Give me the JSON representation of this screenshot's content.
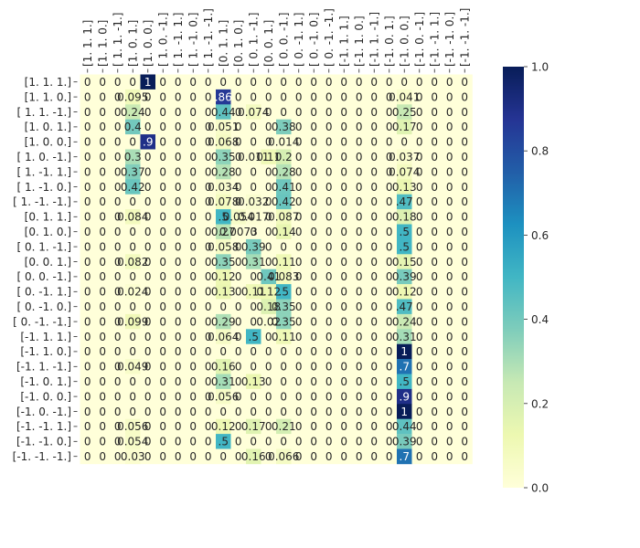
{
  "chart_data": {
    "type": "heatmap",
    "title": "",
    "xlabel": "",
    "ylabel": "",
    "labels": [
      "[1. 1. 1.]",
      "[1. 1. 0.]",
      "[ 1.  1. -1.]",
      "[1. 0. 1.]",
      "[1. 0. 0.]",
      "[ 1.  0. -1.]",
      "[ 1. -1.  1.]",
      "[ 1. -1.  0.]",
      "[ 1. -1. -1.]",
      "[0. 1. 1.]",
      "[0. 1. 0.]",
      "[ 0.  1. -1.]",
      "[0. 0. 1.]",
      "[ 0.  0. -1.]",
      "[ 0. -1.  1.]",
      "[ 0. -1.  0.]",
      "[ 0. -1. -1.]",
      "[-1.  1.  1.]",
      "[-1.  1.  0.]",
      "[-1.  1. -1.]",
      "[-1.  0.  1.]",
      "[-1.  0.  0.]",
      "[-1.  0. -1.]",
      "[-1. -1.  1.]",
      "[-1. -1.  0.]",
      "[-1. -1. -1.]"
    ],
    "cells": [
      [
        "0",
        "0",
        "0",
        "0",
        "1",
        "0",
        "0",
        "0",
        "0",
        "0",
        "0",
        "0",
        "0",
        "0",
        "0",
        "0",
        "0",
        "0",
        "0",
        "0",
        "0",
        "0",
        "0",
        "0",
        "0",
        "0"
      ],
      [
        "0",
        "0",
        "0",
        "0.095",
        "0",
        "0",
        "0",
        "0",
        "0",
        ".86",
        "0",
        "0",
        "0",
        "0",
        "0",
        "0",
        "0",
        "0",
        "0",
        "0",
        "0",
        "0.041",
        "0",
        "0",
        "0",
        "0"
      ],
      [
        "0",
        "0",
        "0",
        "0.24",
        "0",
        "0",
        "0",
        "0",
        "0",
        "0.44",
        "0",
        "0.074",
        "0",
        "0",
        "0",
        "0",
        "0",
        "0",
        "0",
        "0",
        "0",
        "0.25",
        "0",
        "0",
        "0",
        "0"
      ],
      [
        "0",
        "0",
        "0",
        "0.4",
        "0",
        "0",
        "0",
        "0",
        "0",
        "0.051",
        "0",
        "0",
        "0",
        "0.38",
        "0",
        "0",
        "0",
        "0",
        "0",
        "0",
        "0",
        "0.17",
        "0",
        "0",
        "0",
        "0"
      ],
      [
        "0",
        "0",
        "0",
        "0",
        ".9",
        "0",
        "0",
        "0",
        "0",
        "0.068",
        "0",
        "0",
        "0",
        "0.014",
        "0",
        "0",
        "0",
        "0",
        "0",
        "0",
        "0",
        "0",
        "0",
        "0",
        "0",
        "0"
      ],
      [
        "0",
        "0",
        "0",
        "0.3",
        "0",
        "0",
        "0",
        "0",
        "0",
        "0.35",
        "0",
        "0.011",
        "0.11",
        "0.2",
        "0",
        "0",
        "0",
        "0",
        "0",
        "0",
        "0",
        "0.037",
        "0",
        "0",
        "0",
        "0"
      ],
      [
        "0",
        "0",
        "0",
        "0.37",
        "0",
        "0",
        "0",
        "0",
        "0",
        "0.28",
        "0",
        "0",
        "0",
        "0.28",
        "0",
        "0",
        "0",
        "0",
        "0",
        "0",
        "0",
        "0.074",
        "0",
        "0",
        "0",
        "0"
      ],
      [
        "0",
        "0",
        "0",
        "0.42",
        "0",
        "0",
        "0",
        "0",
        "0",
        "0.034",
        "0",
        "0",
        "0",
        "0.41",
        "0",
        "0",
        "0",
        "0",
        "0",
        "0",
        "0",
        "0.13",
        "0",
        "0",
        "0",
        "0"
      ],
      [
        "0",
        "0",
        "0",
        "0",
        "0",
        "0",
        "0",
        "0",
        "0",
        "0.078",
        "0",
        "0.032",
        "0",
        "0.42",
        "0",
        "0",
        "0",
        "0",
        "0",
        "0",
        "0",
        ".47",
        "0",
        "0",
        "0",
        "0"
      ],
      [
        "0",
        "0",
        "0",
        "0.084",
        "0",
        "0",
        "0",
        "0",
        "0",
        ".5",
        "0.054",
        "0.017",
        "0",
        "0.087",
        "0",
        "0",
        "0",
        "0",
        "0",
        "0",
        "0",
        "0.18",
        "0",
        "0",
        "0",
        "0"
      ],
      [
        "0",
        "0",
        "0",
        "0",
        "0",
        "0",
        "0",
        "0",
        "0",
        "0.27",
        "0.0073",
        "0",
        "0",
        "0.14",
        "0",
        "0",
        "0",
        "0",
        "0",
        "0",
        "0",
        ".5",
        "0",
        "0",
        "0",
        "0"
      ],
      [
        "0",
        "0",
        "0",
        "0",
        "0",
        "0",
        "0",
        "0",
        "0",
        "0.058",
        "0",
        "0.39",
        "0",
        "0",
        "0",
        "0",
        "0",
        "0",
        "0",
        "0",
        "0",
        ".5",
        "0",
        "0",
        "0",
        "0"
      ],
      [
        "0",
        "0",
        "0",
        "0.082",
        "0",
        "0",
        "0",
        "0",
        "0",
        "0.35",
        "0",
        "0.31",
        "0",
        "0.11",
        "0",
        "0",
        "0",
        "0",
        "0",
        "0",
        "0",
        "0.15",
        "0",
        "0",
        "0",
        "0"
      ],
      [
        "0",
        "0",
        "0",
        "0",
        "0",
        "0",
        "0",
        "0",
        "0",
        "0.12",
        "0",
        "0",
        "0.41",
        "0.083",
        "0",
        "0",
        "0",
        "0",
        "0",
        "0",
        "0",
        "0.39",
        "0",
        "0",
        "0",
        "0"
      ],
      [
        "0",
        "0",
        "0",
        "0.024",
        "0",
        "0",
        "0",
        "0",
        "0",
        "0.13",
        "0",
        "0.11",
        "0.12",
        ".5",
        "0",
        "0",
        "0",
        "0",
        "0",
        "0",
        "0",
        "0.12",
        "0",
        "0",
        "0",
        "0"
      ],
      [
        "0",
        "0",
        "0",
        "0",
        "0",
        "0",
        "0",
        "0",
        "0",
        "0",
        "0",
        "0",
        "0.18",
        "0.35",
        "0",
        "0",
        "0",
        "0",
        "0",
        "0",
        "0",
        ".47",
        "0",
        "0",
        "0",
        "0"
      ],
      [
        "0",
        "0",
        "0",
        "0.099",
        "0",
        "0",
        "0",
        "0",
        "0",
        "0.29",
        "0",
        "0",
        "0.02",
        "0.35",
        "0",
        "0",
        "0",
        "0",
        "0",
        "0",
        "0",
        "0.24",
        "0",
        "0",
        "0",
        "0"
      ],
      [
        "0",
        "0",
        "0",
        "0",
        "0",
        "0",
        "0",
        "0",
        "0",
        "0.064",
        "0",
        ".5",
        "0",
        "0.11",
        "0",
        "0",
        "0",
        "0",
        "0",
        "0",
        "0",
        "0.31",
        "0",
        "0",
        "0",
        "0"
      ],
      [
        "0",
        "0",
        "0",
        "0",
        "0",
        "0",
        "0",
        "0",
        "0",
        "0",
        "0",
        "0",
        "0",
        "0",
        "0",
        "0",
        "0",
        "0",
        "0",
        "0",
        "0",
        "1",
        "0",
        "0",
        "0",
        "0"
      ],
      [
        "0",
        "0",
        "0",
        "0.049",
        "0",
        "0",
        "0",
        "0",
        "0",
        "0.16",
        "0",
        "0",
        "0",
        "0",
        "0",
        "0",
        "0",
        "0",
        "0",
        "0",
        "0",
        ".7",
        "0",
        "0",
        "0",
        "0"
      ],
      [
        "0",
        "0",
        "0",
        "0",
        "0",
        "0",
        "0",
        "0",
        "0",
        "0.31",
        "0",
        "0.13",
        "0",
        "0",
        "0",
        "0",
        "0",
        "0",
        "0",
        "0",
        "0",
        ".5",
        "0",
        "0",
        "0",
        "0"
      ],
      [
        "0",
        "0",
        "0",
        "0",
        "0",
        "0",
        "0",
        "0",
        "0",
        "0.056",
        "0",
        "0",
        "0",
        "0",
        "0",
        "0",
        "0",
        "0",
        "0",
        "0",
        "0",
        ".9",
        "0",
        "0",
        "0",
        "0"
      ],
      [
        "0",
        "0",
        "0",
        "0",
        "0",
        "0",
        "0",
        "0",
        "0",
        "0",
        "0",
        "0",
        "0",
        "0",
        "0",
        "0",
        "0",
        "0",
        "0",
        "0",
        "0",
        "1",
        "0",
        "0",
        "0",
        "0"
      ],
      [
        "0",
        "0",
        "0",
        "0.056",
        "0",
        "0",
        "0",
        "0",
        "0",
        "0.12",
        "0",
        "0.17",
        "0",
        "0.21",
        "0",
        "0",
        "0",
        "0",
        "0",
        "0",
        "0",
        "0.44",
        "0",
        "0",
        "0",
        "0"
      ],
      [
        "0",
        "0",
        "0",
        "0.054",
        "0",
        "0",
        "0",
        "0",
        "0",
        ".5",
        "0",
        "0",
        "0",
        "0",
        "0",
        "0",
        "0",
        "0",
        "0",
        "0",
        "0",
        "0.39",
        "0",
        "0",
        "0",
        "0"
      ],
      [
        "0",
        "0",
        "0",
        "0.03",
        "0",
        "0",
        "0",
        "0",
        "0",
        "0",
        "0",
        "0.16",
        "0",
        "0.066",
        "0",
        "0",
        "0",
        "0",
        "0",
        "0",
        "0",
        ".7",
        "0",
        "0",
        "0",
        "0"
      ]
    ],
    "colorbar": {
      "colormap": "YlGnBu",
      "vmin": 0.0,
      "vmax": 1.0,
      "ticks": [
        "0.0",
        "0.2",
        "0.4",
        "0.6",
        "0.8",
        "1.0"
      ]
    },
    "grid": false,
    "legend": "colorbar-right"
  }
}
